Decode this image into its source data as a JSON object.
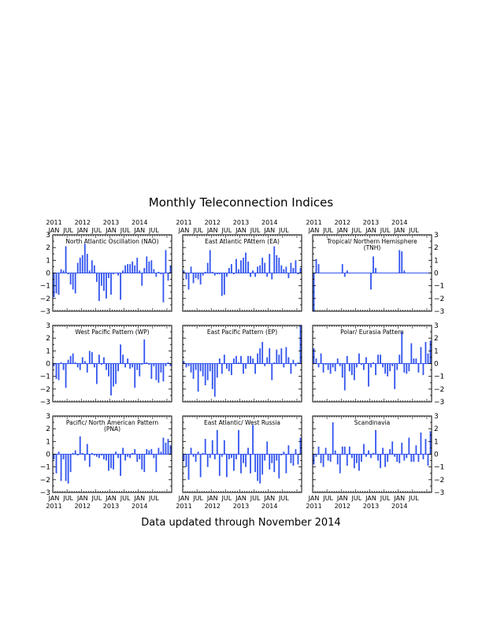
{
  "title": "Monthly Teleconnection Indices",
  "footer": "Data updated through November 2014",
  "x_months": [
    "JAN",
    "JUL",
    "JAN",
    "JUL",
    "JAN",
    "JUL",
    "JAN",
    "JUL"
  ],
  "x_years": [
    "2011",
    "2012",
    "2013",
    "2014"
  ],
  "y_ticks": [
    3,
    2,
    1,
    0,
    -1,
    -2,
    -3
  ],
  "colors": {
    "bar": "#3355ee",
    "axis": "#000000"
  },
  "chart_data": [
    {
      "type": "bar",
      "title": "North Atlantic Oscillation (NAO)",
      "x_start": "2011-01",
      "ylim": [
        -3,
        3
      ],
      "values": [
        -1.9,
        -1.6,
        -1.7,
        0.3,
        0.2,
        2.1,
        -0.1,
        -0.9,
        -1.3,
        -1.6,
        0.8,
        1.2,
        1.4,
        2.3,
        1.5,
        0.2,
        1.0,
        0.6,
        -0.7,
        -2.2,
        -1.0,
        -1.4,
        -2.0,
        -0.4,
        -1.7,
        -0.1,
        0.0,
        -0.2,
        -2.1,
        0.2,
        0.6,
        0.7,
        0.7,
        0.9,
        0.6,
        1.2,
        0.2,
        -1.0,
        0.4,
        1.3,
        0.9,
        1.0,
        0.3,
        -0.3,
        0.1,
        -0.1,
        -2.3,
        1.8,
        -0.6,
        0.6
      ]
    },
    {
      "type": "bar",
      "title": "East Atlantic PAttern (EA)",
      "x_start": "2011-01",
      "ylim": [
        -3,
        3
      ],
      "values": [
        0.2,
        -0.5,
        -1.3,
        0.5,
        -0.8,
        -0.4,
        -0.5,
        -0.9,
        -0.2,
        0.1,
        0.8,
        1.8,
        0.1,
        -0.2,
        -0.1,
        -0.1,
        -1.8,
        -1.7,
        -0.3,
        0.4,
        0.7,
        -0.1,
        1.1,
        0.3,
        1.0,
        1.2,
        1.6,
        0.9,
        -0.3,
        0.2,
        -0.3,
        0.5,
        0.6,
        1.2,
        0.8,
        -0.3,
        1.5,
        -0.5,
        2.1,
        1.4,
        1.2,
        0.6,
        0.3,
        0.5,
        -0.4,
        0.8,
        0.4,
        1.0,
        -0.1,
        0.4
      ]
    },
    {
      "type": "bar",
      "title": "Tropical/ Northern Hemisphere\n(TNH)",
      "x_start": "2011-01",
      "ylim": [
        -3,
        3
      ],
      "values": [
        -3.0,
        1.1,
        0.7,
        0,
        0,
        0,
        0,
        0,
        0,
        0,
        0,
        0,
        0.7,
        -0.3,
        0.2,
        0,
        0,
        0,
        0,
        0,
        0,
        0,
        0,
        0,
        -1.3,
        1.3,
        0.4,
        0,
        0,
        0,
        0,
        0,
        0,
        0,
        0,
        0,
        1.8,
        1.7,
        0.2,
        0,
        0,
        0,
        0,
        0,
        0,
        0,
        0,
        0,
        0,
        0
      ]
    },
    {
      "type": "bar",
      "title": "West Pacific Pattern (WP)",
      "x_start": "2011-01",
      "ylim": [
        -3,
        3
      ],
      "values": [
        -0.2,
        -1.2,
        -1.3,
        0.1,
        -0.5,
        -1.9,
        0.3,
        0.6,
        0.8,
        0.1,
        -0.3,
        -0.5,
        0.5,
        0.2,
        -0.7,
        1.0,
        0.9,
        -0.3,
        -1.6,
        0.7,
        -0.1,
        0.5,
        -0.5,
        -1.0,
        -2.5,
        -1.8,
        -1.6,
        -0.6,
        1.5,
        0.7,
        -0.3,
        0.4,
        -0.4,
        -0.3,
        -1.9,
        -0.5,
        -1.0,
        -0.1,
        1.9,
        0.1,
        -0.1,
        -1.2,
        -0.2,
        -1.3,
        -1.5,
        -0.7,
        -1.4,
        -0.2,
        0.1,
        -0.2
      ]
    },
    {
      "type": "bar",
      "title": "East Pacific Pattern (EP)",
      "x_start": "2011-01",
      "ylim": [
        -3,
        3
      ],
      "values": [
        0.2,
        -0.3,
        -0.2,
        -0.7,
        -1.2,
        -0.5,
        -2.2,
        -0.6,
        -1.0,
        -1.7,
        -1.3,
        -0.6,
        -2.0,
        -2.6,
        -1.1,
        0.4,
        -0.8,
        0.7,
        -0.4,
        -0.6,
        -0.9,
        0.4,
        0.6,
        0.1,
        0.6,
        -0.8,
        -0.4,
        0.6,
        0.6,
        0.4,
        -0.8,
        0.8,
        1.2,
        1.7,
        -0.2,
        0.5,
        1.2,
        -1.3,
        0.1,
        1.1,
        0.7,
        1.2,
        -0.3,
        1.3,
        0.5,
        -0.8,
        0.3,
        -0.2,
        0.1,
        3.0
      ]
    },
    {
      "type": "bar",
      "title": "Polar/ Eurasia Pattern",
      "x_start": "2011-01",
      "ylim": [
        -3,
        3
      ],
      "values": [
        1.2,
        0.4,
        -0.3,
        0.8,
        -0.7,
        -0.1,
        -0.5,
        -0.8,
        -0.3,
        -0.6,
        0.4,
        -0.2,
        -1.1,
        -2.1,
        0.6,
        -0.6,
        -0.9,
        -1.3,
        -0.3,
        0.8,
        -0.1,
        -0.5,
        0.5,
        -1.8,
        -0.3,
        0.1,
        -0.9,
        0.7,
        0.7,
        -0.3,
        -0.8,
        -1.0,
        -0.6,
        -0.2,
        -2.0,
        -0.5,
        0.7,
        2.5,
        -0.7,
        -0.8,
        -0.6,
        1.6,
        0.4,
        0.4,
        -0.7,
        1.3,
        -0.9,
        1.7,
        0.8,
        1.8
      ]
    },
    {
      "type": "bar",
      "title": "Pacific/ North American Pattern\n(PNA)",
      "x_start": "2011-01",
      "ylim": [
        -3,
        3
      ],
      "values": [
        -0.4,
        -1.5,
        0.2,
        -2.1,
        -0.4,
        -2.1,
        -2.3,
        -1.4,
        0.1,
        0.3,
        -0.1,
        1.4,
        0.1,
        -0.5,
        0.8,
        -1.0,
        0.1,
        -0.1,
        -0.2,
        -0.3,
        -0.1,
        -0.4,
        -0.5,
        -1.3,
        -1.1,
        -1.2,
        0.2,
        -0.3,
        -1.7,
        0.5,
        -0.5,
        -0.2,
        -0.3,
        0.1,
        0.4,
        -0.6,
        -0.4,
        -1.2,
        -1.4,
        0.4,
        0.3,
        0.4,
        -0.3,
        -1.4,
        0.5,
        0.2,
        1.3,
        0.9,
        1.2,
        0.7
      ]
    },
    {
      "type": "bar",
      "title": "East Atlantic/ West Russia",
      "x_start": "2011-01",
      "ylim": [
        -3,
        3
      ],
      "values": [
        -0.5,
        -1.0,
        -2.0,
        0.5,
        -0.2,
        -0.6,
        0.2,
        -1.8,
        0.1,
        1.2,
        -1.0,
        -0.3,
        1.1,
        -0.4,
        1.9,
        -1.7,
        -0.2,
        1.1,
        -1.8,
        -0.4,
        -0.3,
        -1.3,
        -0.4,
        1.9,
        -1.5,
        -0.7,
        -1.0,
        0.5,
        -1.5,
        2.3,
        -1.4,
        -2.1,
        -2.3,
        -1.6,
        -0.5,
        1.0,
        -1.2,
        -0.7,
        -1.4,
        -0.5,
        -1.9,
        -0.1,
        0.2,
        -1.5,
        0.7,
        -0.7,
        -0.9,
        0.4,
        -0.8,
        1.3
      ]
    },
    {
      "type": "bar",
      "title": "Scandinavia",
      "x_start": "2011-01",
      "ylim": [
        -3,
        3
      ],
      "values": [
        -0.8,
        -0.2,
        0.6,
        -0.7,
        -1.0,
        0.5,
        -0.5,
        -0.6,
        2.5,
        0.3,
        -0.8,
        -1.5,
        0.6,
        0.6,
        -0.9,
        0.6,
        -0.3,
        -1.1,
        -0.7,
        -1.3,
        -0.6,
        0.8,
        -0.2,
        0.3,
        -0.3,
        0.1,
        1.9,
        -0.5,
        -1.1,
        0.5,
        -1.0,
        -0.6,
        0.4,
        1.0,
        -0.2,
        -0.6,
        -0.7,
        0.9,
        -0.5,
        -0.3,
        1.3,
        -0.6,
        -0.6,
        0.7,
        -0.6,
        1.7,
        -0.4,
        1.2,
        -0.9,
        1.8
      ]
    }
  ]
}
